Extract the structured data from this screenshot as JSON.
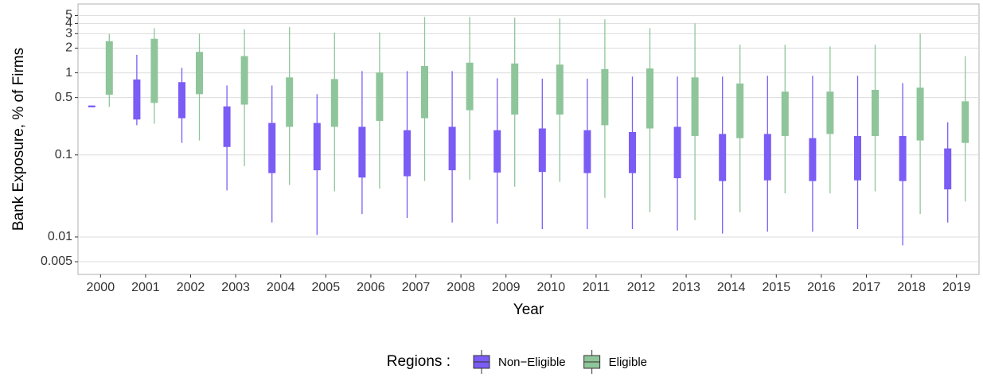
{
  "chart_data": {
    "type": "boxplot",
    "x_label": "Year",
    "y_label": "Bank Exposure, % of Firms",
    "legend_title": "Regions :",
    "categories": [
      "2000",
      "2001",
      "2002",
      "2003",
      "2004",
      "2005",
      "2006",
      "2007",
      "2008",
      "2009",
      "2010",
      "2011",
      "2012",
      "2013",
      "2014",
      "2015",
      "2016",
      "2017",
      "2018",
      "2019"
    ],
    "log_scale": true,
    "grid": true,
    "legend_position": "bottom",
    "ylim": [
      0.0035,
      6.9
    ],
    "yticks": [
      0.005,
      0.01,
      0.1,
      0.5,
      1,
      2,
      3,
      4,
      5
    ],
    "series": [
      {
        "name": "Non−Eligible",
        "color": "#7b5cf5",
        "low": [
          0.38,
          0.23,
          0.14,
          0.037,
          0.015,
          0.0106,
          0.019,
          0.017,
          0.015,
          0.0145,
          0.0125,
          0.0125,
          0.0125,
          0.012,
          0.011,
          0.0116,
          0.0116,
          0.0125,
          0.0079,
          0.015
        ],
        "q1": [
          0.38,
          0.27,
          0.28,
          0.125,
          0.06,
          0.065,
          0.053,
          0.055,
          0.065,
          0.061,
          0.062,
          0.06,
          0.06,
          0.052,
          0.048,
          0.049,
          0.048,
          0.049,
          0.048,
          0.038
        ],
        "q3": [
          0.4,
          0.83,
          0.77,
          0.39,
          0.245,
          0.245,
          0.22,
          0.2,
          0.22,
          0.2,
          0.21,
          0.2,
          0.19,
          0.22,
          0.18,
          0.18,
          0.16,
          0.17,
          0.17,
          0.12
        ],
        "high": [
          0.4,
          1.66,
          1.15,
          0.7,
          0.7,
          0.55,
          1.05,
          1.05,
          1.05,
          0.86,
          0.85,
          0.85,
          0.9,
          0.9,
          0.9,
          0.92,
          0.92,
          0.92,
          0.75,
          0.25
        ]
      },
      {
        "name": "Eligible",
        "color": "#8fc59a",
        "low": [
          0.385,
          0.24,
          0.15,
          0.073,
          0.043,
          0.036,
          0.039,
          0.048,
          0.05,
          0.041,
          0.047,
          0.03,
          0.02,
          0.016,
          0.02,
          0.034,
          0.034,
          0.036,
          0.019,
          0.027
        ],
        "q1": [
          0.54,
          0.43,
          0.55,
          0.41,
          0.22,
          0.22,
          0.26,
          0.28,
          0.35,
          0.31,
          0.31,
          0.23,
          0.21,
          0.17,
          0.16,
          0.17,
          0.18,
          0.17,
          0.15,
          0.14
        ],
        "q3": [
          2.43,
          2.6,
          1.8,
          1.6,
          0.88,
          0.84,
          1.01,
          1.21,
          1.33,
          1.3,
          1.26,
          1.11,
          1.13,
          0.88,
          0.74,
          0.59,
          0.59,
          0.62,
          0.66,
          0.45
        ],
        "high": [
          2.97,
          3.5,
          3.0,
          3.4,
          3.6,
          3.1,
          3.1,
          4.8,
          4.8,
          4.7,
          4.6,
          4.5,
          3.5,
          4.0,
          2.2,
          2.2,
          2.1,
          2.2,
          3.0,
          1.6
        ]
      }
    ]
  }
}
